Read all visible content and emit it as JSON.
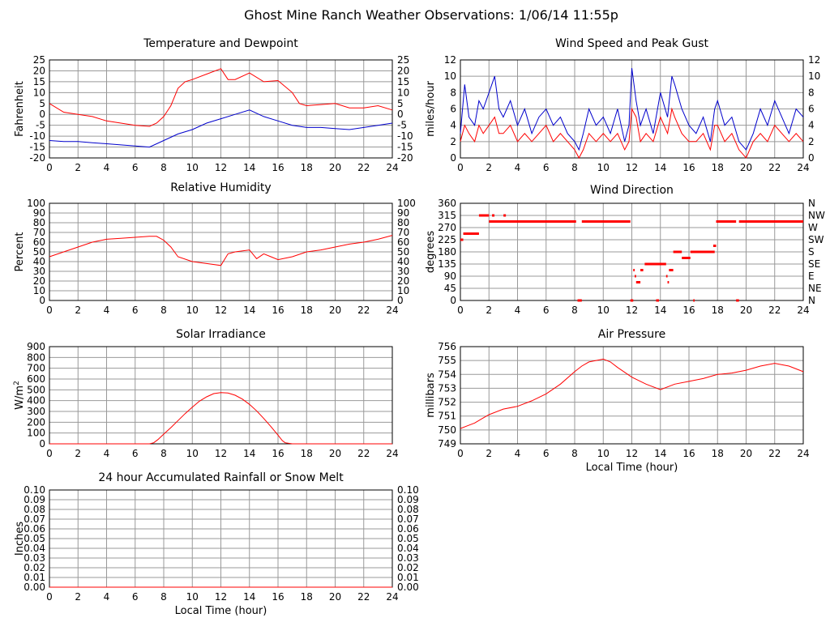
{
  "page": {
    "title": "Ghost Mine Ranch Weather Observations: 1/06/14 11:55p",
    "background": "#ffffff"
  },
  "colors": {
    "series_red": "#ff0000",
    "series_blue": "#0000cc",
    "grid": "#999999",
    "frame": "#000000"
  },
  "chart_data": [
    {
      "id": "temperature",
      "type": "line",
      "title": "Temperature and Dewpoint",
      "xlabel": "",
      "ylabel": "Fahrenheit",
      "xlim": [
        0,
        24
      ],
      "ylim": [
        -20,
        25
      ],
      "xticks": [
        0,
        2,
        4,
        6,
        8,
        10,
        12,
        14,
        16,
        18,
        20,
        22,
        24
      ],
      "yticks": [
        -20,
        -15,
        -10,
        -5,
        0,
        5,
        10,
        15,
        20,
        25
      ],
      "right_yticks": [
        -20,
        -15,
        -10,
        -5,
        0,
        5,
        10,
        15,
        20,
        25
      ],
      "grid": true,
      "series": [
        {
          "color": "#ff0000",
          "x": [
            0,
            1,
            2,
            3,
            4,
            5,
            6,
            7,
            7.5,
            8,
            8.5,
            9,
            9.5,
            10,
            11,
            12,
            12.5,
            13,
            14,
            15,
            16,
            17,
            17.5,
            18,
            19,
            20,
            21,
            22,
            23,
            24
          ],
          "y": [
            5,
            1,
            0,
            -1,
            -3,
            -4,
            -5,
            -5.5,
            -4,
            -1,
            4,
            12,
            15,
            16,
            18.5,
            21,
            16,
            16,
            19,
            15,
            15.5,
            10,
            5,
            4,
            4.5,
            5,
            3,
            3,
            4,
            2
          ]
        },
        {
          "color": "#0000cc",
          "x": [
            0,
            1,
            2,
            3,
            4,
            5,
            6,
            7,
            8,
            9,
            10,
            11,
            12,
            13,
            14,
            15,
            16,
            17,
            18,
            19,
            20,
            21,
            22,
            23,
            24
          ],
          "y": [
            -12,
            -12.5,
            -12.5,
            -13,
            -13.5,
            -14,
            -14.5,
            -15,
            -12,
            -9,
            -7,
            -4,
            -2,
            0,
            2,
            -1,
            -3,
            -5,
            -6,
            -6,
            -6.5,
            -7,
            -6,
            -5,
            -4
          ]
        }
      ]
    },
    {
      "id": "wind_speed",
      "type": "line",
      "title": "Wind Speed and Peak Gust",
      "xlabel": "",
      "ylabel": "miles/hour",
      "xlim": [
        0,
        24
      ],
      "ylim": [
        0,
        12
      ],
      "xticks": [
        0,
        2,
        4,
        6,
        8,
        10,
        12,
        14,
        16,
        18,
        20,
        22,
        24
      ],
      "yticks": [
        0,
        2,
        4,
        6,
        8,
        10,
        12
      ],
      "right_yticks": [
        0,
        2,
        4,
        6,
        8,
        10,
        12
      ],
      "grid": true,
      "series": [
        {
          "color": "#0000cc",
          "x": [
            0,
            0.3,
            0.6,
            1,
            1.3,
            1.6,
            2,
            2.4,
            2.7,
            3,
            3.5,
            4,
            4.5,
            5,
            5.5,
            6,
            6.5,
            7,
            7.5,
            8,
            8.3,
            8.6,
            9,
            9.5,
            10,
            10.5,
            11,
            11.5,
            11.8,
            12,
            12.3,
            12.6,
            13,
            13.5,
            14,
            14.5,
            14.8,
            15,
            15.5,
            16,
            16.5,
            17,
            17.5,
            17.8,
            18,
            18.5,
            19,
            19.5,
            20,
            20.5,
            21,
            21.5,
            22,
            22.5,
            23,
            23.5,
            24
          ],
          "y": [
            3,
            9,
            5,
            4,
            7,
            6,
            8,
            10,
            6,
            5,
            7,
            4,
            6,
            3,
            5,
            6,
            4,
            5,
            3,
            2,
            1,
            3,
            6,
            4,
            5,
            3,
            6,
            2,
            4,
            11,
            7,
            4,
            6,
            3,
            8,
            5,
            10,
            9,
            6,
            4,
            3,
            5,
            2,
            6,
            7,
            4,
            5,
            2,
            1,
            3,
            6,
            4,
            7,
            5,
            3,
            6,
            5
          ]
        },
        {
          "color": "#ff0000",
          "x": [
            0,
            0.3,
            0.6,
            1,
            1.3,
            1.6,
            2,
            2.4,
            2.7,
            3,
            3.5,
            4,
            4.5,
            5,
            5.5,
            6,
            6.5,
            7,
            7.5,
            8,
            8.3,
            8.6,
            9,
            9.5,
            10,
            10.5,
            11,
            11.5,
            11.8,
            12,
            12.3,
            12.6,
            13,
            13.5,
            14,
            14.5,
            14.8,
            15,
            15.5,
            16,
            16.5,
            17,
            17.5,
            17.8,
            18,
            18.5,
            19,
            19.5,
            20,
            20.5,
            21,
            21.5,
            22,
            22.5,
            23,
            23.5,
            24
          ],
          "y": [
            2,
            4,
            3,
            2,
            4,
            3,
            4,
            5,
            3,
            3,
            4,
            2,
            3,
            2,
            3,
            4,
            2,
            3,
            2,
            1,
            0,
            1,
            3,
            2,
            3,
            2,
            3,
            1,
            2,
            6,
            5,
            2,
            3,
            2,
            5,
            3,
            6,
            5,
            3,
            2,
            2,
            3,
            1,
            4,
            4,
            2,
            3,
            1,
            0,
            2,
            3,
            2,
            4,
            3,
            2,
            3,
            2
          ]
        }
      ]
    },
    {
      "id": "humidity",
      "type": "line",
      "title": "Relative Humidity",
      "xlabel": "",
      "ylabel": "Percent",
      "xlim": [
        0,
        24
      ],
      "ylim": [
        0,
        100
      ],
      "xticks": [
        0,
        2,
        4,
        6,
        8,
        10,
        12,
        14,
        16,
        18,
        20,
        22,
        24
      ],
      "yticks": [
        0,
        10,
        20,
        30,
        40,
        50,
        60,
        70,
        80,
        90,
        100
      ],
      "right_yticks": [
        0,
        10,
        20,
        30,
        40,
        50,
        60,
        70,
        80,
        90,
        100
      ],
      "grid": true,
      "series": [
        {
          "color": "#ff0000",
          "x": [
            0,
            1,
            2,
            3,
            4,
            5,
            6,
            7,
            7.5,
            8,
            8.5,
            9,
            10,
            11,
            12,
            12.5,
            13,
            14,
            14.5,
            15,
            15.5,
            16,
            17,
            18,
            19,
            20,
            21,
            22,
            23,
            24
          ],
          "y": [
            45,
            50,
            55,
            60,
            63,
            64,
            65,
            66,
            66,
            62,
            55,
            45,
            40,
            38,
            36,
            48,
            50,
            52,
            43,
            48,
            45,
            42,
            45,
            50,
            52,
            55,
            58,
            60,
            63,
            67
          ]
        }
      ]
    },
    {
      "id": "wind_direction",
      "type": "scatter",
      "title": "Wind Direction",
      "xlabel": "",
      "ylabel": "degrees",
      "xlim": [
        0,
        24
      ],
      "ylim": [
        0,
        360
      ],
      "xticks": [
        0,
        2,
        4,
        6,
        8,
        10,
        12,
        14,
        16,
        18,
        20,
        22,
        24
      ],
      "yticks": [
        0,
        45,
        90,
        135,
        180,
        225,
        270,
        315,
        360
      ],
      "right_yticks": [
        "N",
        "NE",
        "E",
        "SE",
        "S",
        "SW",
        "W",
        "NW",
        "N"
      ],
      "grid": true,
      "series": [
        {
          "color": "#ff0000",
          "segments": [
            {
              "x": [
                0,
                0.2
              ],
              "y": 225
            },
            {
              "x": [
                0.2,
                1.3
              ],
              "y": 247.5
            },
            {
              "x": [
                1.3,
                2.0
              ],
              "y": 315
            },
            {
              "x": [
                2.0,
                8.1
              ],
              "y": 292.5
            },
            {
              "x": [
                8.2,
                8.5
              ],
              "y": 0
            },
            {
              "x": [
                8.5,
                11.9
              ],
              "y": 292.5
            },
            {
              "x": [
                11.9,
                12.1
              ],
              "y": 0
            },
            {
              "x": [
                12.1,
                12.2
              ],
              "y": 112.5
            },
            {
              "x": [
                12.2,
                12.3
              ],
              "y": 90
            },
            {
              "x": [
                12.3,
                12.6
              ],
              "y": 67.5
            },
            {
              "x": [
                12.6,
                12.8
              ],
              "y": 112.5
            },
            {
              "x": [
                12.9,
                14.4
              ],
              "y": 135
            },
            {
              "x": [
                13.7,
                13.9
              ],
              "y": 0
            },
            {
              "x": [
                14.4,
                14.5
              ],
              "y": 90
            },
            {
              "x": [
                14.5,
                14.6
              ],
              "y": 67.5
            },
            {
              "x": [
                14.6,
                14.9
              ],
              "y": 112.5
            },
            {
              "x": [
                14.9,
                15.5
              ],
              "y": 180
            },
            {
              "x": [
                15.5,
                16.1
              ],
              "y": 157.5
            },
            {
              "x": [
                16.1,
                17.8
              ],
              "y": 180
            },
            {
              "x": [
                16.3,
                16.4
              ],
              "y": 0
            },
            {
              "x": [
                17.7,
                17.9
              ],
              "y": 202.5
            },
            {
              "x": [
                17.9,
                19.3
              ],
              "y": 292.5
            },
            {
              "x": [
                19.3,
                19.5
              ],
              "y": 0
            },
            {
              "x": [
                19.5,
                24
              ],
              "y": 292.5
            }
          ],
          "points": [
            {
              "x": 2.3,
              "y": 315
            },
            {
              "x": 3.1,
              "y": 315
            }
          ]
        }
      ]
    },
    {
      "id": "solar",
      "type": "line",
      "title": "Solar Irradiance",
      "xlabel": "",
      "ylabel": "W/m2",
      "xlim": [
        0,
        24
      ],
      "ylim": [
        0,
        900
      ],
      "xticks": [
        0,
        2,
        4,
        6,
        8,
        10,
        12,
        14,
        16,
        18,
        20,
        22,
        24
      ],
      "yticks": [
        0,
        100,
        200,
        300,
        400,
        500,
        600,
        700,
        800,
        900
      ],
      "right_yticks": [],
      "grid": true,
      "series": [
        {
          "color": "#ff0000",
          "x": [
            0,
            7,
            7.3,
            7.6,
            8,
            8.5,
            9,
            9.5,
            10,
            10.5,
            11,
            11.5,
            12,
            12.5,
            13,
            13.5,
            14,
            14.5,
            15,
            15.5,
            16,
            16.3,
            16.5,
            17,
            24
          ],
          "y": [
            0,
            0,
            10,
            40,
            90,
            150,
            215,
            280,
            340,
            395,
            435,
            465,
            475,
            470,
            450,
            415,
            365,
            305,
            235,
            160,
            80,
            30,
            10,
            0,
            0
          ]
        }
      ]
    },
    {
      "id": "pressure",
      "type": "line",
      "title": "Air Pressure",
      "xlabel": "Local Time (hour)",
      "ylabel": "millibars",
      "xlim": [
        0,
        24
      ],
      "ylim": [
        749,
        756
      ],
      "xticks": [
        0,
        2,
        4,
        6,
        8,
        10,
        12,
        14,
        16,
        18,
        20,
        22,
        24
      ],
      "yticks": [
        749,
        750,
        751,
        752,
        753,
        754,
        755,
        756
      ],
      "right_yticks": [],
      "grid": true,
      "series": [
        {
          "color": "#ff0000",
          "x": [
            0,
            0.5,
            1,
            1.5,
            2,
            3,
            4,
            5,
            6,
            7,
            8,
            8.5,
            9,
            9.5,
            10,
            10.5,
            11,
            12,
            13,
            14,
            15,
            16,
            17,
            18,
            19,
            20,
            21,
            22,
            23,
            24
          ],
          "y": [
            750.1,
            750.3,
            750.5,
            750.8,
            751.1,
            751.5,
            751.7,
            752.1,
            752.6,
            753.3,
            754.2,
            754.6,
            754.9,
            755.0,
            755.1,
            754.9,
            754.5,
            753.8,
            753.3,
            752.9,
            753.3,
            753.5,
            753.7,
            754.0,
            754.1,
            754.3,
            754.6,
            754.8,
            754.6,
            754.2
          ]
        }
      ]
    },
    {
      "id": "rainfall",
      "type": "line",
      "title": "24 hour Accumulated Rainfall or Snow Melt",
      "xlabel": "Local Time (hour)",
      "ylabel": "Inches",
      "xlim": [
        0,
        24
      ],
      "ylim": [
        0,
        0.1
      ],
      "xticks": [
        0,
        2,
        4,
        6,
        8,
        10,
        12,
        14,
        16,
        18,
        20,
        22,
        24
      ],
      "yticks": [
        "0.00",
        "0.01",
        "0.02",
        "0.03",
        "0.04",
        "0.05",
        "0.06",
        "0.07",
        "0.08",
        "0.09",
        "0.10"
      ],
      "right_yticks": [
        "0.00",
        "0.01",
        "0.02",
        "0.03",
        "0.04",
        "0.05",
        "0.06",
        "0.07",
        "0.08",
        "0.09",
        "0.10"
      ],
      "grid": true,
      "series": [
        {
          "color": "#ff0000",
          "x": [
            0,
            24
          ],
          "y": [
            0,
            0
          ]
        }
      ]
    }
  ]
}
